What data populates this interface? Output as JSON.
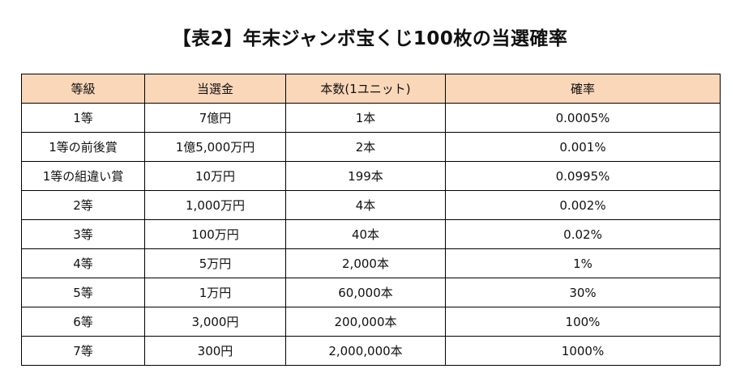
{
  "title": "【表2】年末ジャンボ宝くじ100枚の当選確率",
  "colors": {
    "header_background": "#fbd7b9",
    "border": "#000000"
  },
  "table": {
    "headers": [
      "等級",
      "当選金",
      "本数(1ユニット)",
      "確率"
    ],
    "rows": [
      [
        "1等",
        "7億円",
        "1本",
        "0.0005%"
      ],
      [
        "1等の前後賞",
        "1億5,000万円",
        "2本",
        "0.001%"
      ],
      [
        "1等の組違い賞",
        "10万円",
        "199本",
        "0.0995%"
      ],
      [
        "2等",
        "1,000万円",
        "4本",
        "0.002%"
      ],
      [
        "3等",
        "100万円",
        "40本",
        "0.02%"
      ],
      [
        "4等",
        "5万円",
        "2,000本",
        "1%"
      ],
      [
        "5等",
        "1万円",
        "60,000本",
        "30%"
      ],
      [
        "6等",
        "3,000円",
        "200,000本",
        "100%"
      ],
      [
        "7等",
        "300円",
        "2,000,000本",
        "1000%"
      ]
    ]
  }
}
